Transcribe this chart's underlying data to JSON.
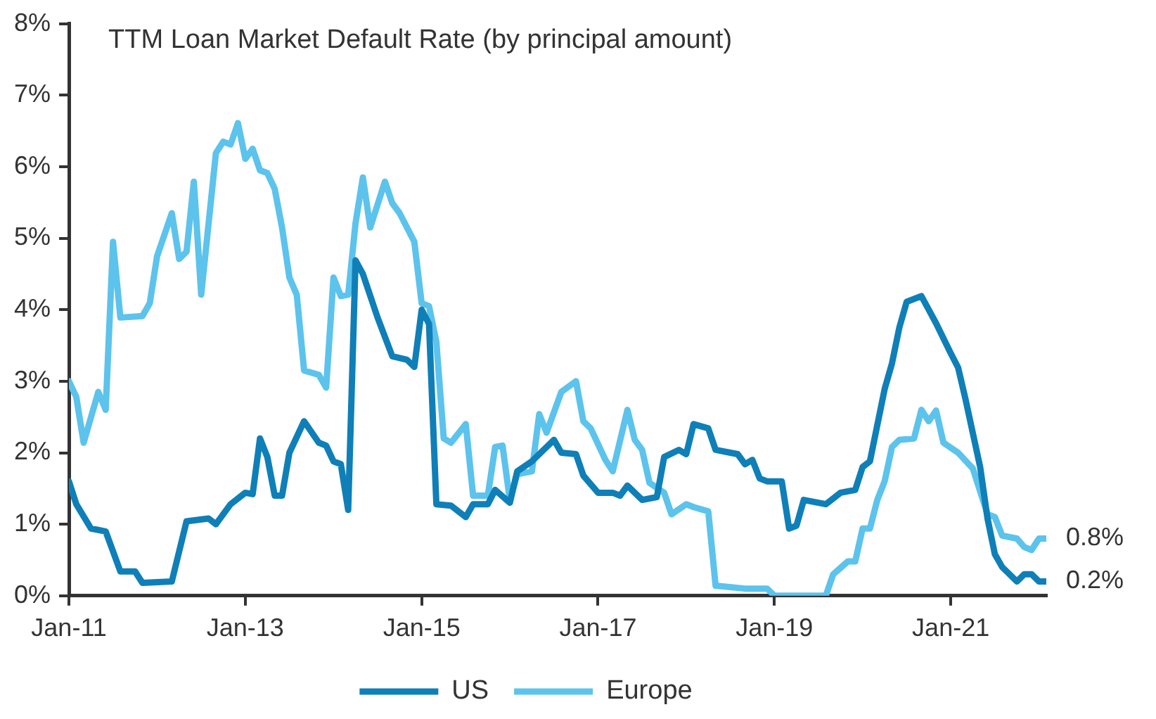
{
  "chart_data": {
    "type": "line",
    "title": "TTM Loan Market Default Rate (by principal amount)",
    "series": [
      {
        "name": "US",
        "color": "#0f7fb8",
        "x": [
          "2011-01",
          "2011-02",
          "2011-04",
          "2011-06",
          "2011-08",
          "2011-10",
          "2011-11",
          "2012-03",
          "2012-05",
          "2012-08",
          "2012-09",
          "2012-11",
          "2013-01",
          "2013-02",
          "2013-03",
          "2013-04",
          "2013-05",
          "2013-06",
          "2013-07",
          "2013-09",
          "2013-11",
          "2013-12",
          "2014-01",
          "2014-02",
          "2014-03",
          "2014-04",
          "2014-05",
          "2014-07",
          "2014-09",
          "2014-11",
          "2014-12",
          "2015-01",
          "2015-02",
          "2015-03",
          "2015-05",
          "2015-07",
          "2015-08",
          "2015-10",
          "2015-11",
          "2016-01",
          "2016-02",
          "2016-04",
          "2016-07",
          "2016-08",
          "2016-10",
          "2016-11",
          "2017-01",
          "2017-03",
          "2017-04",
          "2017-05",
          "2017-07",
          "2017-09",
          "2017-10",
          "2017-12",
          "2018-01",
          "2018-02",
          "2018-04",
          "2018-05",
          "2018-07",
          "2018-08",
          "2018-09",
          "2018-10",
          "2018-11",
          "2018-12",
          "2019-02",
          "2019-03",
          "2019-04",
          "2019-05",
          "2019-08",
          "2019-10",
          "2019-12",
          "2020-01",
          "2020-02",
          "2020-04",
          "2020-05",
          "2020-06",
          "2020-07",
          "2020-09",
          "2020-10",
          "2020-11",
          "2021-01",
          "2021-02",
          "2021-03",
          "2021-05",
          "2021-06",
          "2021-07",
          "2021-08",
          "2021-10",
          "2021-11",
          "2021-12",
          "2022-01",
          "2022-02"
        ],
        "values": [
          1.6,
          1.28,
          0.94,
          0.9,
          0.34,
          0.34,
          0.18,
          0.2,
          1.04,
          1.08,
          1.0,
          1.28,
          1.44,
          1.42,
          2.2,
          1.94,
          1.4,
          1.4,
          2.0,
          2.44,
          2.14,
          2.1,
          1.88,
          1.84,
          1.2,
          4.69,
          4.5,
          3.89,
          3.35,
          3.3,
          3.2,
          4.0,
          3.8,
          1.28,
          1.26,
          1.1,
          1.28,
          1.28,
          1.48,
          1.3,
          1.74,
          1.88,
          2.18,
          2.0,
          1.98,
          1.68,
          1.44,
          1.44,
          1.4,
          1.54,
          1.34,
          1.38,
          1.94,
          2.04,
          1.98,
          2.4,
          2.34,
          2.04,
          2.0,
          1.98,
          1.84,
          1.9,
          1.64,
          1.6,
          1.6,
          0.94,
          0.98,
          1.34,
          1.28,
          1.44,
          1.48,
          1.8,
          1.88,
          2.89,
          3.25,
          3.75,
          4.11,
          4.19,
          4.0,
          3.81,
          3.39,
          3.19,
          2.75,
          1.8,
          1.08,
          0.58,
          0.4,
          0.2,
          0.3,
          0.3,
          0.2,
          0.2
        ]
      },
      {
        "name": "Europe",
        "color": "#5cc3ec",
        "x": [
          "2011-01",
          "2011-02",
          "2011-03",
          "2011-05",
          "2011-06",
          "2011-07",
          "2011-08",
          "2011-11",
          "2011-12",
          "2012-01",
          "2012-03",
          "2012-04",
          "2012-05",
          "2012-06",
          "2012-07",
          "2012-09",
          "2012-10",
          "2012-11",
          "2012-12",
          "2013-01",
          "2013-02",
          "2013-03",
          "2013-04",
          "2013-05",
          "2013-06",
          "2013-07",
          "2013-08",
          "2013-09",
          "2013-11",
          "2013-12",
          "2014-01",
          "2014-02",
          "2014-03",
          "2014-04",
          "2014-05",
          "2014-06",
          "2014-08",
          "2014-09",
          "2014-10",
          "2014-12",
          "2015-01",
          "2015-02",
          "2015-03",
          "2015-04",
          "2015-05",
          "2015-07",
          "2015-08",
          "2015-10",
          "2015-11",
          "2015-12",
          "2016-01",
          "2016-02",
          "2016-04",
          "2016-05",
          "2016-06",
          "2016-08",
          "2016-10",
          "2016-11",
          "2016-12",
          "2017-02",
          "2017-03",
          "2017-05",
          "2017-06",
          "2017-07",
          "2017-08",
          "2017-10",
          "2017-11",
          "2018-01",
          "2018-02",
          "2018-04",
          "2018-05",
          "2018-09",
          "2018-12",
          "2019-01",
          "2019-08",
          "2019-09",
          "2019-11",
          "2019-12",
          "2020-01",
          "2020-02",
          "2020-03",
          "2020-04",
          "2020-05",
          "2020-06",
          "2020-08",
          "2020-09",
          "2020-10",
          "2020-11",
          "2020-12",
          "2021-02",
          "2021-04",
          "2021-06",
          "2021-07",
          "2021-08",
          "2021-10",
          "2021-11",
          "2021-12",
          "2022-01",
          "2022-02"
        ],
        "values": [
          3.0,
          2.78,
          2.14,
          2.85,
          2.6,
          4.95,
          3.89,
          3.91,
          4.09,
          4.75,
          5.35,
          4.71,
          4.81,
          5.79,
          4.21,
          6.19,
          6.35,
          6.31,
          6.61,
          6.11,
          6.25,
          5.95,
          5.91,
          5.69,
          5.15,
          4.45,
          4.21,
          3.15,
          3.09,
          2.91,
          4.45,
          4.19,
          4.21,
          5.21,
          5.85,
          5.15,
          5.79,
          5.49,
          5.35,
          4.95,
          4.09,
          4.05,
          3.55,
          2.2,
          2.14,
          2.4,
          1.4,
          1.4,
          2.08,
          2.1,
          1.34,
          1.7,
          1.74,
          2.54,
          2.28,
          2.85,
          3.0,
          2.44,
          2.34,
          1.9,
          1.74,
          2.6,
          2.18,
          2.04,
          1.58,
          1.44,
          1.14,
          1.28,
          1.24,
          1.18,
          0.14,
          0.1,
          0.1,
          0,
          0,
          0.3,
          0.48,
          0.48,
          0.94,
          0.94,
          1.34,
          1.6,
          2.08,
          2.18,
          2.2,
          2.6,
          2.44,
          2.59,
          2.14,
          2.0,
          1.78,
          1.14,
          1.1,
          0.84,
          0.8,
          0.68,
          0.64,
          0.8,
          0.8
        ]
      }
    ],
    "xlim": [
      "2011-01",
      "2022-02"
    ],
    "xticks": [
      {
        "value": "2011-01",
        "label": "Jan-11"
      },
      {
        "value": "2013-01",
        "label": "Jan-13"
      },
      {
        "value": "2015-01",
        "label": "Jan-15"
      },
      {
        "value": "2017-01",
        "label": "Jan-17"
      },
      {
        "value": "2019-01",
        "label": "Jan-19"
      },
      {
        "value": "2021-01",
        "label": "Jan-21"
      }
    ],
    "ylim": [
      0,
      8
    ],
    "yticks": [
      {
        "value": 0,
        "label": "0%"
      },
      {
        "value": 1,
        "label": "1%"
      },
      {
        "value": 2,
        "label": "2%"
      },
      {
        "value": 3,
        "label": "3%"
      },
      {
        "value": 4,
        "label": "4%"
      },
      {
        "value": 5,
        "label": "5%"
      },
      {
        "value": 6,
        "label": "6%"
      },
      {
        "value": 7,
        "label": "7%"
      },
      {
        "value": 8,
        "label": "8%"
      }
    ],
    "annotations": [
      {
        "text": "0.8%",
        "x": "2022-02",
        "y": 0.8
      },
      {
        "text": "0.2%",
        "x": "2022-02",
        "y": 0.2
      }
    ],
    "grid": false,
    "legend": "bottom",
    "marker": "none",
    "line_style": "solid"
  }
}
